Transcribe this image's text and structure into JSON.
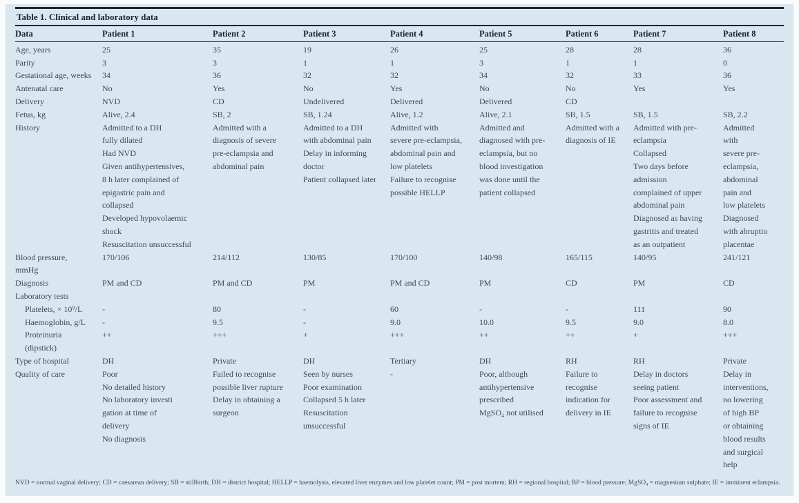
{
  "colors": {
    "panel_bg": "#d9e7f0",
    "text": "#3a4a58",
    "heading": "#1a242e",
    "rule": "#1f2429",
    "page_bg": "#fafbfb"
  },
  "title": "Table 1. Clinical and laboratory data",
  "table": {
    "columns": [
      "Data",
      "Patient 1",
      "Patient 2",
      "Patient 3",
      "Patient 4",
      "Patient 5",
      "Patient 6",
      "Patient 7",
      "Patient 8"
    ],
    "rows": [
      {
        "label": "Age, years",
        "indent": false,
        "values": [
          "25",
          "35",
          "19",
          "26",
          "25",
          "28",
          "28",
          "36"
        ]
      },
      {
        "label": "Parity",
        "indent": false,
        "values": [
          "3",
          "3",
          "1",
          "1",
          "3",
          "1",
          "1",
          "0"
        ]
      },
      {
        "label": "Gestational age, weeks",
        "indent": false,
        "values": [
          "34",
          "36",
          "32",
          "32",
          "34",
          "32",
          "33",
          "36"
        ]
      },
      {
        "label": "Antenatal care",
        "indent": false,
        "values": [
          "No",
          "Yes",
          "No",
          "Yes",
          "No",
          "No",
          "Yes",
          "Yes"
        ]
      },
      {
        "label": "Delivery",
        "indent": false,
        "values": [
          "NVD",
          "CD",
          "Undelivered",
          "Delivered",
          "Delivered",
          "CD",
          "",
          ""
        ]
      },
      {
        "label": "Fetus, kg",
        "indent": false,
        "values": [
          "Alive, 2.4",
          "SB, 2",
          "SB, 1.24",
          "Alive, 1.2",
          "Alive, 2.1",
          "SB, 1.5",
          "SB, 1.5",
          "SB, 2.2"
        ]
      },
      {
        "label": "History",
        "indent": false,
        "values": [
          "Admitted to a DH\nfully dilated\nHad NVD\nGiven antihypertensives,\n8 h later complained of\nepigastric pain and\ncollapsed\nDeveloped hypovolaemic\nshock\nResuscitation unsuccessful",
          "Admitted with a\ndiagnosis of severe\npre-eclampsia and\nabdominal pain",
          "Admitted to a DH\nwith abdominal pain\nDelay in informing\ndoctor\nPatient collapsed later",
          "Admitted with\nsevere pre-eclampsia,\nabdominal pain and\nlow platelets\nFailure to recognise\npossible HELLP",
          "Admitted and\ndiagnosed with pre-\neclampsia, but no\nblood investigation\nwas done until the\npatient collapsed",
          "Admitted with a\ndiagnosis of IE",
          "Admitted with pre-\neclampsia\nCollapsed\nTwo days before\nadmission\ncomplained of upper\nabdominal pain\nDiagnosed as having\ngastritis and treated\nas an outpatient",
          "Admitted\nwith\nsevere pre-\neclampsia,\nabdominal\npain and\nlow platelets\nDiagnosed\nwith abruptio\nplacentae"
        ]
      },
      {
        "label": "Blood pressure,\nmmHg",
        "indent": false,
        "values": [
          "170/106",
          "214/112",
          "130/85",
          "170/100",
          "140/98",
          "165/115",
          "140/95",
          "241/121"
        ]
      },
      {
        "label": "Diagnosis",
        "indent": false,
        "values": [
          "PM and CD",
          "PM and CD",
          "PM",
          "PM and CD",
          "PM",
          "CD",
          "PM",
          "CD"
        ]
      },
      {
        "label": "Laboratory tests",
        "indent": false,
        "values": [
          "",
          "",
          "",
          "",
          "",
          "",
          "",
          ""
        ]
      },
      {
        "label": "Platelets, × 10⁹/L",
        "indent": true,
        "values": [
          "-",
          "80",
          "-",
          "60",
          "-",
          "-",
          "111",
          "90"
        ]
      },
      {
        "label": "Haemoglobin, g/L",
        "indent": true,
        "values": [
          "-",
          "9.5",
          "-",
          "9.0",
          "10.0",
          "9.5",
          "9.0",
          "8.0"
        ]
      },
      {
        "label": "Proteinuria\n(dipstick)",
        "indent": true,
        "values": [
          "++",
          "+++",
          "+",
          "+++",
          "++",
          "++",
          "+",
          "+++"
        ]
      },
      {
        "label": "Type of hospital",
        "indent": false,
        "values": [
          "DH",
          "Private",
          "DH",
          "Tertiary",
          "DH",
          "RH",
          "RH",
          "Private"
        ]
      },
      {
        "label": "Quality of care",
        "indent": false,
        "values": [
          "Poor\nNo detailed history\nNo laboratory investi\ngation at time of\ndelivery\nNo diagnosis",
          "Failed to recognise\npossible liver rupture\nDelay in obtaining a\nsurgeon",
          "Seen by nurses\nPoor examination\nCollapsed 5 h later\nResuscitation\nunsuccessful",
          "-",
          "Poor, although\nantihypertensive\nprescribed\nMgSO₄ not utilised",
          "Failure to\nrecognise\nindication for\ndelivery in IE",
          "Delay in doctors\nseeing patient\nPoor assessment and\nfailure to recognise\nsigns of IE",
          "Delay in\ninterventions,\nno lowering\nof high BP\nor obtaining\nblood results\nand surgical\nhelp"
        ]
      }
    ]
  },
  "footnote": "NVD = normal vaginal delivery; CD = caesarean delivery; SB = stillbirth; DH = district hospital; HELLP = haemolysis, elevated liver enzymes and low platelet count; PM = post mortem; RH = regional hospital; BP = blood pressure; MgSO₄ = magnesium sulphate; IE = imminent eclampsia."
}
